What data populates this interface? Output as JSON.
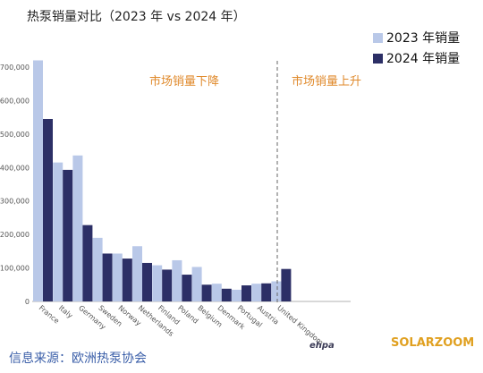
{
  "title": "热泵销量对比（2023 年  vs 2024 年）",
  "colors": {
    "series_2023": "#b9c8e8",
    "series_2024": "#2c2f66",
    "annotation": "#e08a2c",
    "source": "#3a5ea8",
    "brand": "#e0a020"
  },
  "annotations": {
    "left": "市场销量下降",
    "right": "市场销量上升"
  },
  "source": "信息来源：欧洲热泵协会",
  "logo_text": "ehpa",
  "brand": "SOLARZOOM",
  "chart_data": {
    "type": "bar",
    "title": "热泵销量对比（2023 年  vs 2024 年）",
    "categories": [
      "France",
      "Italy",
      "Germany",
      "Sweden",
      "Norway",
      "Netherlands",
      "Finland",
      "Poland",
      "Belgium",
      "Denmark",
      "Portugal",
      "Austria",
      "United Kingdom"
    ],
    "series": [
      {
        "name": "2023 年销量",
        "values": [
          720000,
          415000,
          436000,
          190000,
          143000,
          165000,
          108000,
          123000,
          103000,
          53000,
          35000,
          53000,
          60000
        ]
      },
      {
        "name": "2024 年销量",
        "values": [
          545000,
          393000,
          228000,
          143000,
          128000,
          115000,
          95000,
          80000,
          50000,
          38000,
          48000,
          54000,
          97000
        ]
      }
    ],
    "yticks": [
      "0",
      "100,000",
      "200,000",
      "300,000",
      "400,000",
      "500,000",
      "600,000",
      "700,000"
    ],
    "ylim": [
      0,
      740000
    ],
    "legend_position": "top-right",
    "grid": false
  }
}
